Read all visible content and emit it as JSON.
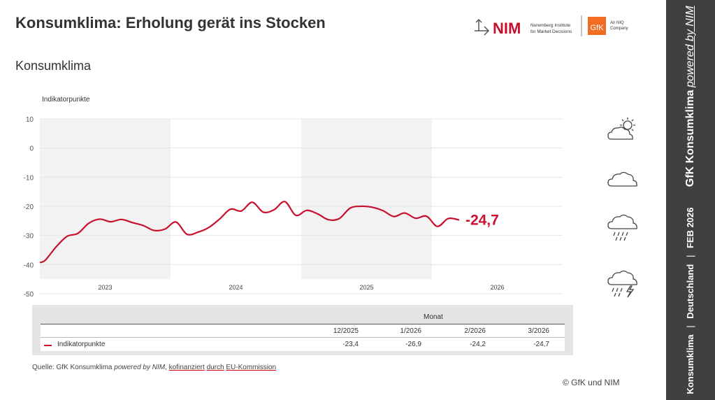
{
  "header": {
    "title": "Konsumklima: Erholung gerät ins Stocken",
    "subtitle": "Konsumklima"
  },
  "logos": {
    "nim_name": "NIM",
    "nim_line1": "Nuremberg Institute",
    "nim_line2": "for Market Decisions",
    "gfk_name": "GfK",
    "gfk_line1": "An NIQ",
    "gfk_line2": "Company"
  },
  "sidebar": {
    "part1": "Konsumklima",
    "part2": "Deutschland",
    "part3": "FEB 2026",
    "part4": "GfK Konsumklima",
    "part5": "powered by NIM",
    "separator": "|"
  },
  "chart_data": {
    "type": "line",
    "ylabel": "Indikatorpunkte",
    "ylim": [
      -50,
      10
    ],
    "yticks": [
      10,
      0,
      -10,
      -20,
      -30,
      -40,
      -50
    ],
    "year_labels": [
      "2023",
      "2024",
      "2025",
      "2026"
    ],
    "shaded_years": [
      "2023",
      "2025"
    ],
    "grid": true,
    "last_value_label": "-24,7",
    "series": [
      {
        "name": "Indikatorpunkte",
        "color": "#c8102e",
        "x": [
          "2023-01",
          "2023-02",
          "2023-03",
          "2023-04",
          "2023-05",
          "2023-06",
          "2023-07",
          "2023-08",
          "2023-09",
          "2023-10",
          "2023-11",
          "2023-12",
          "2024-01",
          "2024-02",
          "2024-03",
          "2024-04",
          "2024-05",
          "2024-06",
          "2024-07",
          "2024-08",
          "2024-09",
          "2024-10",
          "2024-11",
          "2024-12",
          "2025-01",
          "2025-02",
          "2025-03",
          "2025-04",
          "2025-05",
          "2025-06",
          "2025-07",
          "2025-08",
          "2025-09",
          "2025-10",
          "2025-11",
          "2025-12",
          "2026-01",
          "2026-02",
          "2026-03"
        ],
        "values": [
          -38.5,
          -33.9,
          -30.3,
          -29.3,
          -25.8,
          -24.4,
          -25.3,
          -24.5,
          -25.6,
          -26.6,
          -28.3,
          -27.8,
          -25.4,
          -29.6,
          -28.9,
          -27.3,
          -24.4,
          -21.0,
          -21.6,
          -18.6,
          -22.0,
          -21.2,
          -18.4,
          -23.1,
          -21.4,
          -22.6,
          -24.6,
          -24.2,
          -20.6,
          -20.0,
          -20.3,
          -21.5,
          -23.5,
          -22.3,
          -24.1,
          -23.4,
          -26.9,
          -24.2,
          -24.7
        ]
      }
    ]
  },
  "table": {
    "group_header": "Monat",
    "columns": [
      "12/2025",
      "1/2026",
      "2/2026",
      "3/2026"
    ],
    "rows": [
      {
        "label": "Indikatorpunkte",
        "values": [
          "-23,4",
          "-26,9",
          "-24,2",
          "-24,7"
        ]
      }
    ]
  },
  "source": {
    "prefix": "Quelle: GfK Konsumklima ",
    "italic": "powered by NIM",
    "sep": ", ",
    "w1": "kofinanziert",
    "w2": "durch",
    "w3": "EU-Kommission"
  },
  "copyright": "© GfK und NIM",
  "weather_icons": [
    "sun-cloud-icon",
    "cloud-icon",
    "rain-cloud-icon",
    "storm-cloud-icon"
  ]
}
